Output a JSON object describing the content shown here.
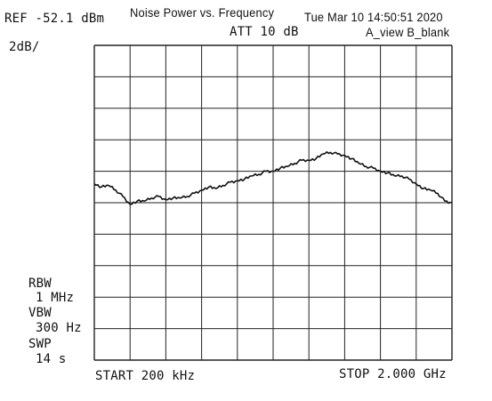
{
  "header": {
    "ref": "REF -52.1 dBm",
    "title": "Noise Power vs. Frequency",
    "timestamp": "Tue Mar 10 14:50:51 2020",
    "att": "ATT 10 dB",
    "view": "A_view B_blank",
    "scale": "2dB/"
  },
  "settings": {
    "rbw_label": "RBW",
    "rbw_value": "1 MHz",
    "vbw_label": "VBW",
    "vbw_value": "300 Hz",
    "swp_label": "SWP",
    "swp_value": "14 s"
  },
  "footer": {
    "start": "START 200 kHz",
    "stop": "STOP 2.000 GHz"
  },
  "chart_data": {
    "type": "line",
    "title": "Noise Power vs. Frequency",
    "x_unit": "GHz",
    "y_unit": "dBm",
    "xlim": [
      0.0002,
      2.0
    ],
    "ylim": [
      -72.1,
      -52.1
    ],
    "grid": true,
    "divisions": {
      "x": 10,
      "y": 10
    },
    "series": [
      {
        "x": [
          0.0002,
          0.04,
          0.08,
          0.12,
          0.16,
          0.2,
          0.24,
          0.28,
          0.32,
          0.36,
          0.4,
          0.44,
          0.48,
          0.52,
          0.56,
          0.6,
          0.64,
          0.68,
          0.72,
          0.76,
          0.8,
          0.84,
          0.88,
          0.92,
          0.96,
          1.0,
          1.04,
          1.08,
          1.12,
          1.16,
          1.2,
          1.24,
          1.28,
          1.32,
          1.36,
          1.4,
          1.44,
          1.48,
          1.52,
          1.56,
          1.6,
          1.64,
          1.68,
          1.72,
          1.76,
          1.8,
          1.84,
          1.88,
          1.92,
          1.96,
          2.0
        ],
        "values": [
          -60.9,
          -61.1,
          -61.0,
          -61.3,
          -61.7,
          -62.2,
          -62.0,
          -62.0,
          -61.8,
          -61.7,
          -61.9,
          -61.8,
          -61.8,
          -61.7,
          -61.5,
          -61.3,
          -61.1,
          -61.2,
          -61.0,
          -60.8,
          -60.7,
          -60.6,
          -60.4,
          -60.3,
          -60.1,
          -60.1,
          -59.9,
          -59.8,
          -59.6,
          -59.4,
          -59.4,
          -59.3,
          -59.0,
          -58.9,
          -59.0,
          -59.1,
          -59.3,
          -59.6,
          -59.8,
          -59.9,
          -60.1,
          -60.2,
          -60.4,
          -60.4,
          -60.6,
          -60.9,
          -61.2,
          -61.3,
          -61.5,
          -62.0,
          -62.1
        ]
      }
    ]
  }
}
